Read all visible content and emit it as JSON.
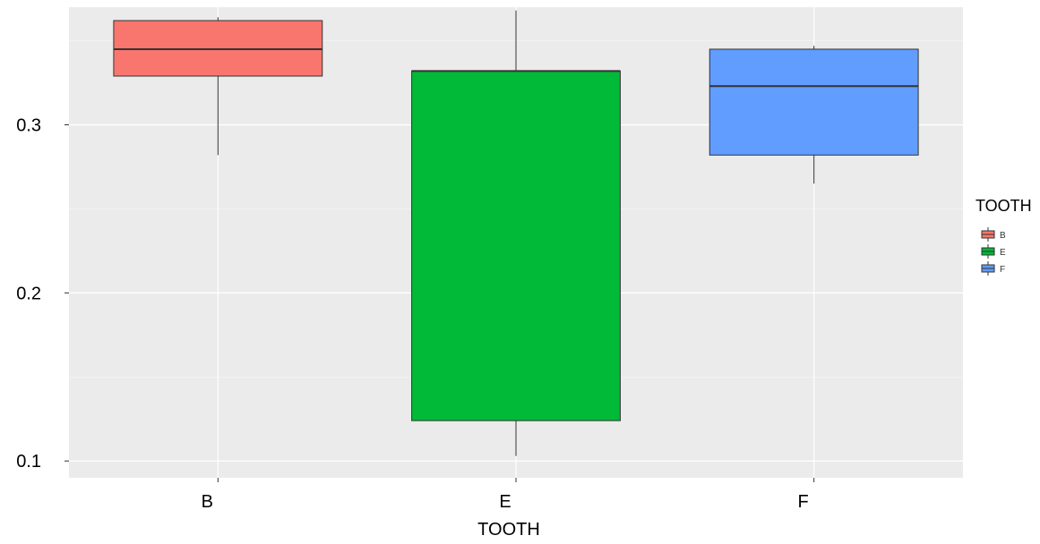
{
  "chart_data": {
    "type": "box",
    "title": "",
    "xlabel": "TOOTH",
    "ylabel": "",
    "categories": [
      "B",
      "E",
      "F"
    ],
    "ylim": [
      0.09,
      0.37
    ],
    "yticks": [
      0.1,
      0.2,
      0.3
    ],
    "ytick_labels": [
      "0.1",
      "0.2",
      "0.3"
    ],
    "grid": true,
    "legend": {
      "title": "TOOTH",
      "position": "right",
      "entries": [
        "B",
        "E",
        "F"
      ]
    },
    "boxes": [
      {
        "category": "B",
        "whisker_low": 0.282,
        "q1": 0.329,
        "median": 0.345,
        "q3": 0.362,
        "whisker_high": 0.364,
        "color": "#F8766D"
      },
      {
        "category": "E",
        "whisker_low": 0.103,
        "q1": 0.124,
        "median": 0.332,
        "q3": 0.332,
        "whisker_high": 0.368,
        "color": "#00BA38"
      },
      {
        "category": "F",
        "whisker_low": 0.265,
        "q1": 0.282,
        "median": 0.323,
        "q3": 0.345,
        "whisker_high": 0.347,
        "color": "#619CFF"
      }
    ],
    "colors": {
      "panel_background": "#EBEBEB",
      "grid_major": "#FFFFFF",
      "box_outline": "#333333",
      "whisker": "#333333"
    }
  }
}
